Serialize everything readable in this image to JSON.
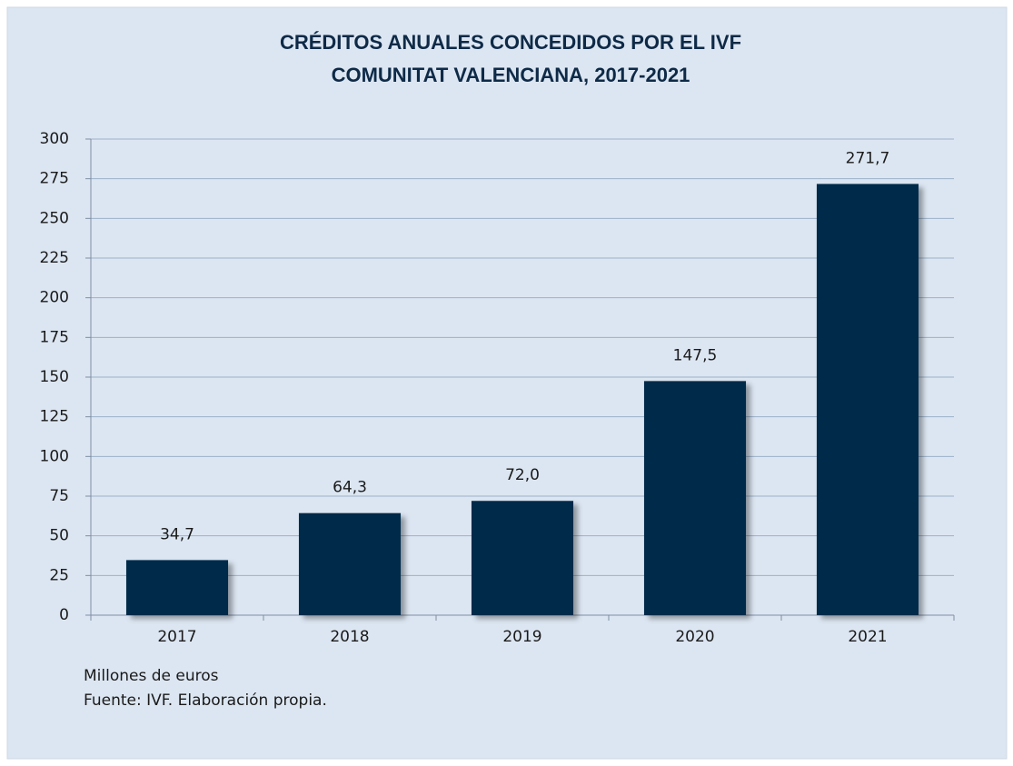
{
  "chart_data": {
    "type": "bar",
    "title": "CRÉDITOS ANUALES CONCEDIDOS POR EL IVF",
    "subtitle": "COMUNITAT VALENCIANA, 2017-2021",
    "categories": [
      "2017",
      "2018",
      "2019",
      "2020",
      "2021"
    ],
    "values": [
      34.7,
      64.3,
      72.0,
      147.5,
      271.7
    ],
    "value_labels": [
      "34,7",
      "64,3",
      "72,0",
      "147,5",
      "271,7"
    ],
    "color": "#002a4a",
    "ylim": [
      0,
      300
    ],
    "yticks": [
      0,
      25,
      50,
      75,
      100,
      125,
      150,
      175,
      200,
      225,
      250,
      275,
      300
    ],
    "grid": true,
    "notes": [
      "Millones de euros",
      "Fuente: IVF.  Elaboración propia."
    ]
  }
}
